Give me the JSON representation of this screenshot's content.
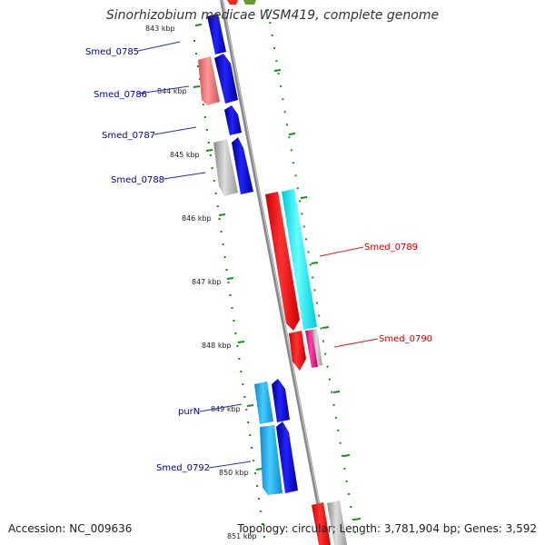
{
  "title": "Sinorhizobium medicae WSM419, complete genome",
  "footer": {
    "accession": "Accession: NC_009636",
    "summary": "Topology: circular; Length: 3,781,904 bp; Genes: 3,592"
  },
  "ticks": [
    "843 kbp",
    "844 kbp",
    "845 kbp",
    "846 kbp",
    "847 kbp",
    "848 kbp",
    "849 kbp",
    "850 kbp",
    "851 kbp"
  ],
  "gene_labels": [
    {
      "text": "Smed_0785",
      "color": "#000099"
    },
    {
      "text": "Smed_0786",
      "color": "#000099"
    },
    {
      "text": "Smed_0787",
      "color": "#000099"
    },
    {
      "text": "Smed_0788",
      "color": "#000099"
    },
    {
      "text": "Smed_0789",
      "color": "#cc0000"
    },
    {
      "text": "Smed_0790",
      "color": "#cc0000"
    },
    {
      "text": "purN",
      "color": "#000099"
    },
    {
      "text": "Smed_0792",
      "color": "#000099"
    }
  ],
  "colors": {
    "backbone": "#808080",
    "tick": "#228822",
    "forward_gene": "#0000dd",
    "reverse_gene": "#ff0000",
    "cyan_gene": "#00e0ee",
    "light_blue_gene": "#22aadd",
    "pink_gene": "#ee7777",
    "gray_gene": "#aaaaaa",
    "magenta_gene": "#ee1188"
  }
}
